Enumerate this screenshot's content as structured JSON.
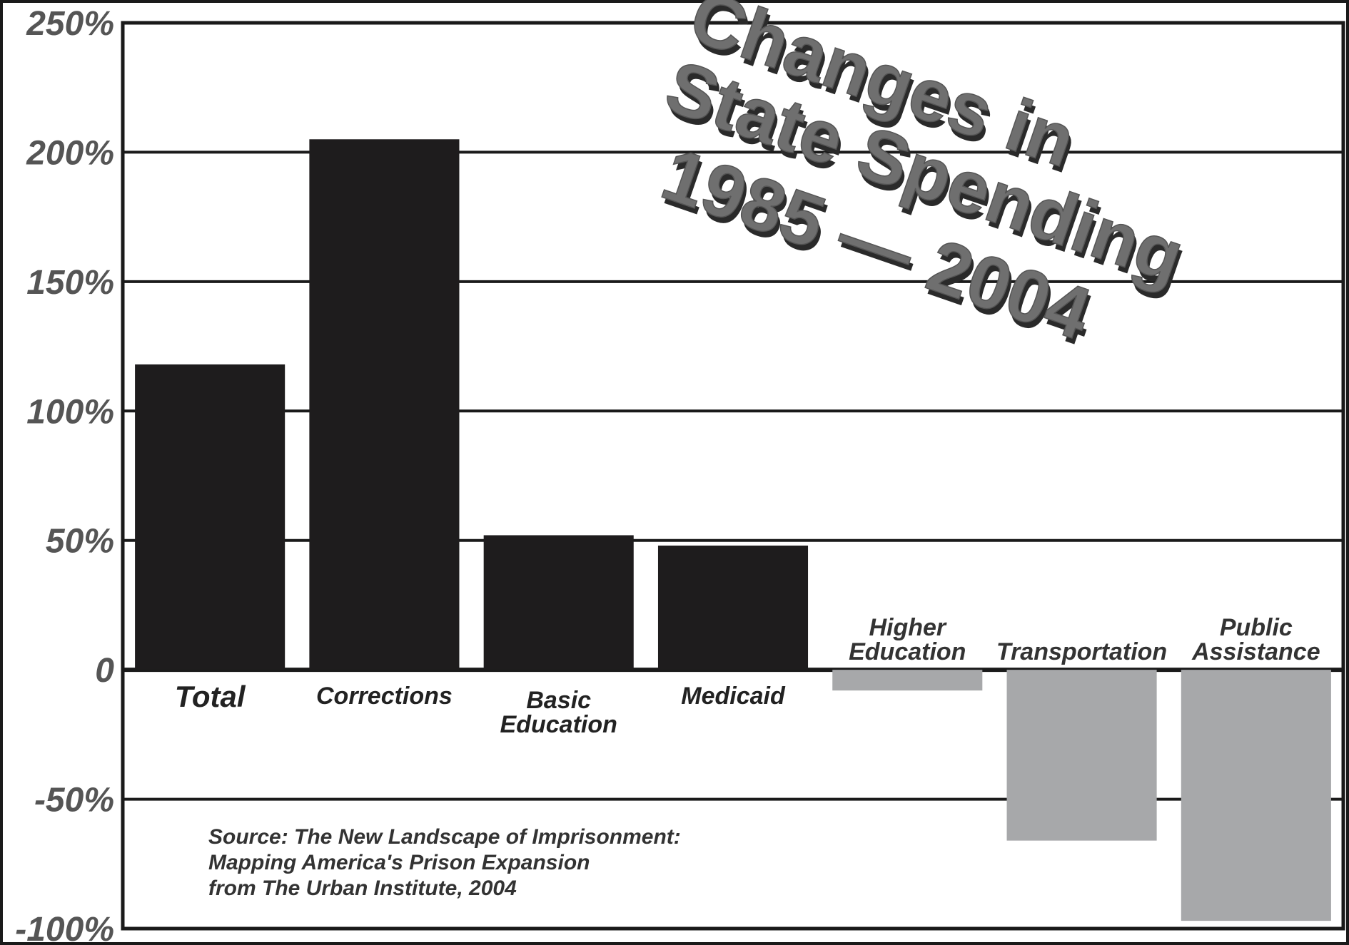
{
  "chart_data": {
    "type": "bar",
    "title_lines": [
      "Changes in",
      "State Spending",
      "1985 — 2004"
    ],
    "categories": [
      [
        "Total"
      ],
      [
        "Corrections"
      ],
      [
        "Basic",
        "Education"
      ],
      [
        "Medicaid"
      ],
      [
        "Higher",
        "Education"
      ],
      [
        "Transportation"
      ],
      [
        "Public",
        "Assistance"
      ]
    ],
    "values": [
      118,
      205,
      52,
      48,
      -8,
      -66,
      -97
    ],
    "ylim": [
      -100,
      250
    ],
    "yticks": [
      250,
      200,
      150,
      100,
      50,
      0,
      -50,
      -100
    ],
    "ytick_labels": [
      "250%",
      "200%",
      "150%",
      "100%",
      "50%",
      "0",
      "-50%",
      "-100%"
    ],
    "grid": true,
    "colors": {
      "positive": "#1e1c1d",
      "negative": "#a7a8aa",
      "grid": "#1a1a1a",
      "title": "#6f6f6f"
    },
    "source_lines": [
      "Source: The New Landscape of Imprisonment:",
      "Mapping America's Prison Expansion",
      "from The Urban Institute, 2004"
    ]
  }
}
